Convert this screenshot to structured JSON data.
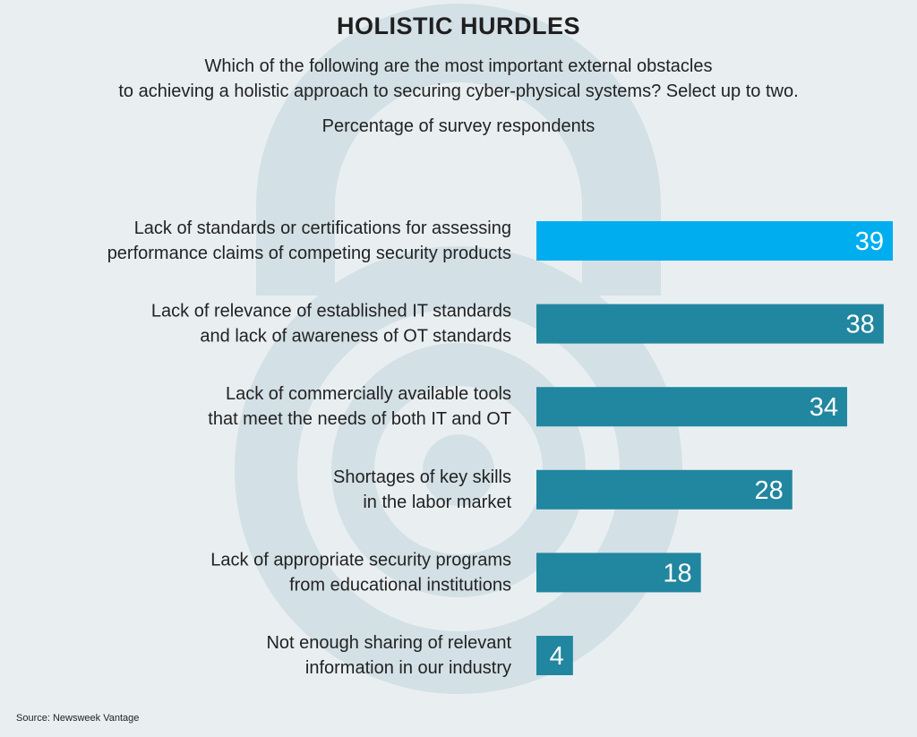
{
  "header": {
    "title": "HOLISTIC HURDLES",
    "subtitle_lines": [
      "Which of the following are the most important external obstacles",
      "to achieving a holistic approach to securing cyber-physical systems? Select up to two."
    ],
    "units": "Percentage of survey respondents"
  },
  "source": "Source: Newsweek Vantage",
  "colors": {
    "highlight_bar": "#00aeef",
    "bar": "#21869f",
    "background": "#e9eff1",
    "watermark": "#d3e0e6"
  },
  "background_icon": "padlock-gear-icon",
  "chart_data": {
    "type": "bar",
    "orientation": "horizontal",
    "categories": [
      [
        "Lack of standards or certifications for assessing",
        "performance claims of competing security products"
      ],
      [
        "Lack of relevance of established IT standards",
        "and lack of awareness of OT standards"
      ],
      [
        "Lack of commercially available tools",
        "that meet the needs of both IT and OT"
      ],
      [
        "Shortages of key skills",
        "in the labor market"
      ],
      [
        "Lack of appropriate security programs",
        "from educational institutions"
      ],
      [
        "Not enough sharing of relevant",
        "information in our industry"
      ]
    ],
    "values": [
      39,
      38,
      34,
      28,
      18,
      4
    ],
    "xlim": [
      0,
      39
    ],
    "highlight_index": 0,
    "grid": false,
    "legend": "none"
  }
}
